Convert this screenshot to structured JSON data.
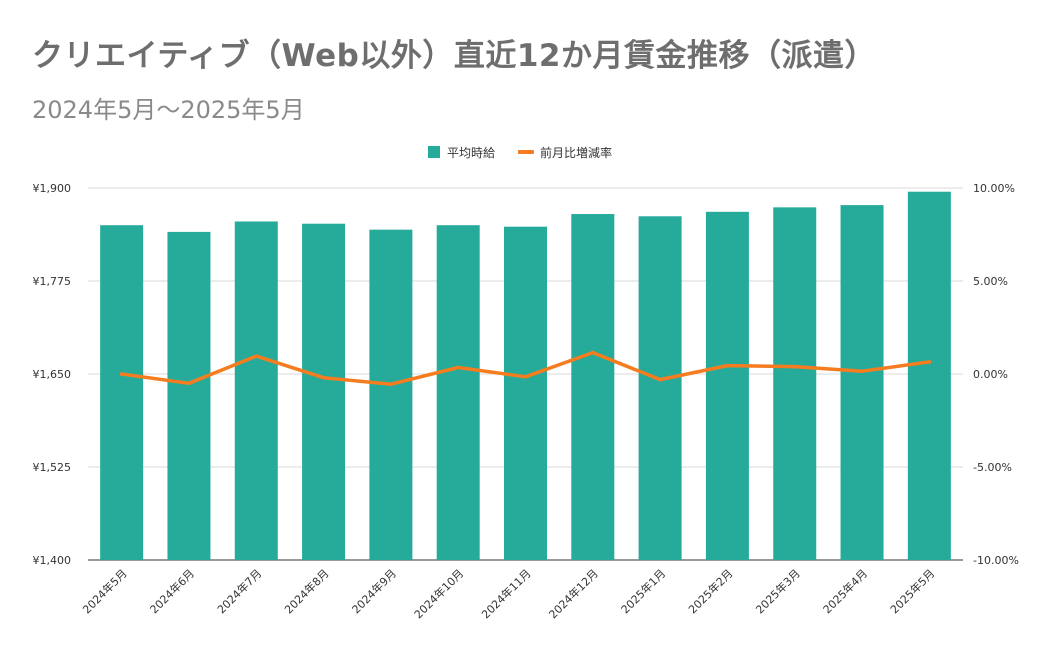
{
  "header": {
    "title": "クリエイティブ（Web以外）直近12か月賃金推移（派遣）",
    "subtitle": "2024年5月～2025年5月"
  },
  "chart_data": {
    "type": "bar",
    "categories": [
      "2024年5月",
      "2024年6月",
      "2024年7月",
      "2024年8月",
      "2024年9月",
      "2024年10月",
      "2024年11月",
      "2024年12月",
      "2025年1月",
      "2025年2月",
      "2025年3月",
      "2025年4月",
      "2025年5月"
    ],
    "series": [
      {
        "name": "平均時給",
        "type": "bar",
        "axis": "left",
        "color": "#26ab9b",
        "values": [
          1850,
          1841,
          1855,
          1852,
          1844,
          1850,
          1848,
          1865,
          1862,
          1868,
          1874,
          1877,
          1895
        ]
      },
      {
        "name": "前月比増減率",
        "type": "line",
        "axis": "right",
        "color": "#f57c1f",
        "values": [
          0.0,
          -0.5,
          0.96,
          -0.2,
          -0.55,
          0.35,
          -0.15,
          1.15,
          -0.3,
          0.45,
          0.4,
          0.15,
          0.65
        ]
      }
    ],
    "y_left": {
      "min": 1400,
      "max": 1900,
      "ticks": [
        1400,
        1525,
        1650,
        1775,
        1900
      ],
      "tick_labels": [
        "¥1,400",
        "¥1,525",
        "¥1,650",
        "¥1,775",
        "¥1,900"
      ]
    },
    "y_right": {
      "min": -10,
      "max": 10,
      "ticks": [
        -10,
        -5,
        0,
        5,
        10
      ],
      "tick_labels": [
        "-10.00%",
        "-5.00%",
        "0.00%",
        "5.00%",
        "10.00%"
      ]
    },
    "grid": true,
    "legend_position": "top-center"
  }
}
